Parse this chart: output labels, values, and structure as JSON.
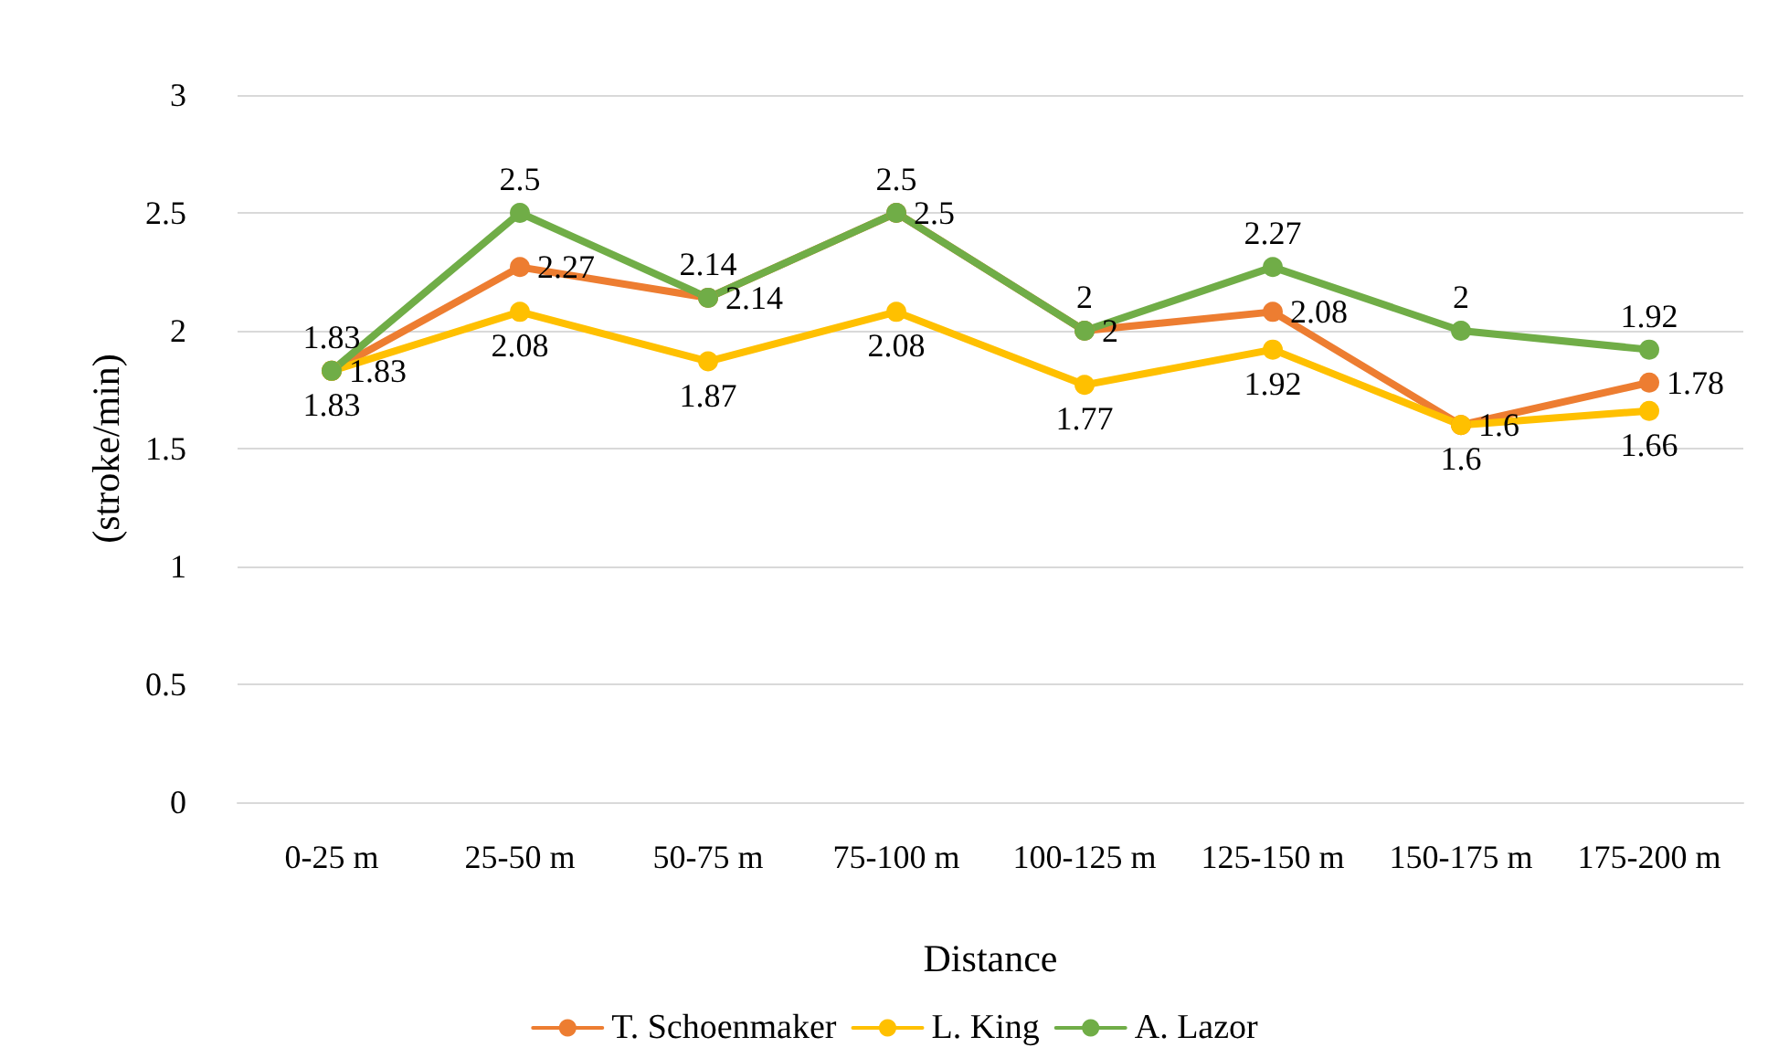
{
  "chart_data": {
    "type": "line",
    "xlabel": "Distance",
    "ylabel": "(stroke/min)",
    "categories": [
      "0-25 m",
      "25-50 m",
      "50-75 m",
      "75-100 m",
      "100-125 m",
      "125-150 m",
      "150-175 m",
      "175-200 m"
    ],
    "series": [
      {
        "name": "T. Schoenmaker",
        "color": "#ed7d31",
        "values": [
          1.83,
          2.27,
          2.14,
          2.5,
          2,
          2.08,
          1.6,
          1.78
        ]
      },
      {
        "name": "L. King",
        "color": "#ffc000",
        "values": [
          1.83,
          2.08,
          1.87,
          2.08,
          1.77,
          1.92,
          1.6,
          1.66
        ]
      },
      {
        "name": "A. Lazor",
        "color": "#70ad47",
        "values": [
          1.83,
          2.5,
          2.14,
          2.5,
          2,
          2.27,
          2,
          1.92
        ]
      }
    ],
    "ylim": [
      0,
      3
    ],
    "yticks": [
      0,
      0.5,
      1,
      1.5,
      2,
      2.5,
      3
    ],
    "grid": "y",
    "legend": "bottom",
    "marker": "circle",
    "line_style": "solid",
    "data_labels": true
  }
}
